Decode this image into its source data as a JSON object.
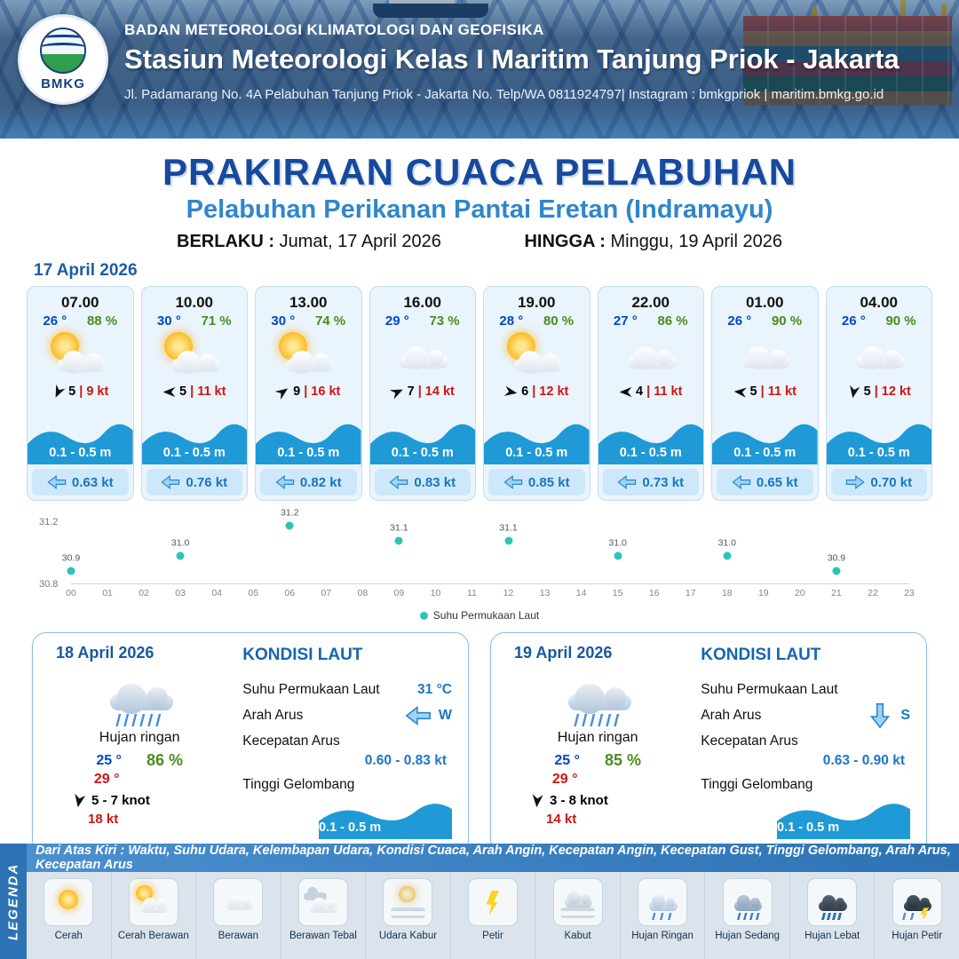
{
  "header": {
    "logo_text": "BMKG",
    "agency": "BADAN METEOROLOGI KLIMATOLOGI DAN GEOFISIKA",
    "station": "Stasiun Meteorologi Kelas I Maritim Tanjung Priok - Jakarta",
    "address": "Jl. Padamarang No. 4A Pelabuhan Tanjung Priok - Jakarta No. Telp/WA 0811924797| Instagram : bmkgpriok | maritim.bmkg.go.id"
  },
  "title": {
    "main": "PRAKIRAAN CUACA PELABUHAN",
    "sub": "Pelabuhan Perikanan Pantai Eretan (Indramayu)",
    "berlaku_label": "BERLAKU :",
    "berlaku_value": "Jumat, 17 April 2026",
    "hingga_label": "HINGGA :",
    "hingga_value": "Minggu, 19 April 2026",
    "forecast_date": "17 April 2026"
  },
  "cards": [
    {
      "time": "07.00",
      "temp": "26 °",
      "rh": "88 %",
      "icon": "cerah-berawan",
      "wind": "5",
      "gust": "| 9 kt",
      "wind_deg": 115,
      "wave": "0.1 - 0.5 m",
      "current": "0.63 kt",
      "cur_deg": 180
    },
    {
      "time": "10.00",
      "temp": "30 °",
      "rh": "71 %",
      "icon": "cerah-berawan",
      "wind": "5",
      "gust": "| 11 kt",
      "wind_deg": 180,
      "wave": "0.1 - 0.5 m",
      "current": "0.76 kt",
      "cur_deg": 180
    },
    {
      "time": "13.00",
      "temp": "30 °",
      "rh": "74 %",
      "icon": "cerah-berawan",
      "wind": "9",
      "gust": "| 16 kt",
      "wind_deg": 325,
      "wave": "0.1 - 0.5 m",
      "current": "0.82 kt",
      "cur_deg": 180
    },
    {
      "time": "16.00",
      "temp": "29 °",
      "rh": "73 %",
      "icon": "berawan",
      "wind": "7",
      "gust": "| 14 kt",
      "wind_deg": 335,
      "wave": "0.1 - 0.5 m",
      "current": "0.83 kt",
      "cur_deg": 180
    },
    {
      "time": "19.00",
      "temp": "28 °",
      "rh": "80 %",
      "icon": "cerah-berawan",
      "wind": "6",
      "gust": "| 12 kt",
      "wind_deg": 10,
      "wave": "0.1 - 0.5 m",
      "current": "0.85 kt",
      "cur_deg": 180
    },
    {
      "time": "22.00",
      "temp": "27 °",
      "rh": "86 %",
      "icon": "berawan",
      "wind": "4",
      "gust": "| 11 kt",
      "wind_deg": 180,
      "wave": "0.1 - 0.5 m",
      "current": "0.73 kt",
      "cur_deg": 180
    },
    {
      "time": "01.00",
      "temp": "26 °",
      "rh": "90 %",
      "icon": "berawan",
      "wind": "5",
      "gust": "| 11 kt",
      "wind_deg": 185,
      "wave": "0.1 - 0.5 m",
      "current": "0.65 kt",
      "cur_deg": 180
    },
    {
      "time": "04.00",
      "temp": "26 °",
      "rh": "90 %",
      "icon": "berawan",
      "wind": "5",
      "gust": "| 12 kt",
      "wind_deg": 100,
      "wave": "0.1 - 0.5 m",
      "current": "0.70 kt",
      "cur_deg": 0
    }
  ],
  "chart_data": {
    "type": "scatter",
    "series_name": "Suhu Permukaan Laut",
    "x_ticks": [
      "00",
      "01",
      "02",
      "03",
      "04",
      "05",
      "06",
      "07",
      "08",
      "09",
      "10",
      "11",
      "12",
      "13",
      "14",
      "15",
      "16",
      "17",
      "18",
      "19",
      "20",
      "21",
      "22",
      "23"
    ],
    "y_ticks": [
      "31.2",
      "30.8"
    ],
    "ylim": [
      30.8,
      31.2
    ],
    "points": [
      {
        "h": 0,
        "v": 30.9
      },
      {
        "h": 3,
        "v": 31.0
      },
      {
        "h": 6,
        "v": 31.2
      },
      {
        "h": 9,
        "v": 31.1
      },
      {
        "h": 12,
        "v": 31.1
      },
      {
        "h": 15,
        "v": 31.0
      },
      {
        "h": 18,
        "v": 31.0
      },
      {
        "h": 21,
        "v": 30.9
      }
    ],
    "dot_color": "#2ec4b6",
    "legend_position": "bottom-center",
    "grid": false
  },
  "day_cards": [
    {
      "date": "18 April 2026",
      "icon": "hujan-ringan",
      "condition": "Hujan ringan",
      "temp_min": "25 °",
      "temp_max": "29 °",
      "rh": "86 %",
      "wind": "5 - 7 knot",
      "gust": "18 kt",
      "wind_deg": 100,
      "sea_title": "KONDISI LAUT",
      "sst_label": "Suhu Permukaan Laut",
      "sst_value": "31 °C",
      "current_dir_label": "Arah Arus",
      "current_dir": "W",
      "cur_deg": 180,
      "current_speed_label": "Kecepatan Arus",
      "current_speed": "0.60 - 0.83 kt",
      "wave_label": "Tinggi Gelombang",
      "wave": "0.1 - 0.5 m"
    },
    {
      "date": "19 April 2026",
      "icon": "hujan-ringan",
      "condition": "Hujan ringan",
      "temp_min": "25 °",
      "temp_max": "29 °",
      "rh": "85 %",
      "wind": "3 - 8 knot",
      "gust": "14 kt",
      "wind_deg": 95,
      "sea_title": "KONDISI LAUT",
      "sst_label": "Suhu Permukaan Laut",
      "sst_value": "",
      "current_dir_label": "Arah Arus",
      "current_dir": "S",
      "cur_deg": 90,
      "current_speed_label": "Kecepatan Arus",
      "current_speed": "0.63 - 0.90 kt",
      "wave_label": "Tinggi Gelombang",
      "wave": "0.1 - 0.5 m"
    }
  ],
  "footer": {
    "note": "Dari Atas Kiri : Waktu, Suhu Udara, Kelembapan Udara, Kondisi Cuaca, Arah Angin, Kecepatan Angin, Kecepatan Gust, Tinggi Gelombang, Arah Arus, Kecepatan Arus",
    "legenda": "LEGENDA",
    "items": [
      {
        "label": "Cerah",
        "icon": "cerah"
      },
      {
        "label": "Cerah Berawan",
        "icon": "cerah-berawan"
      },
      {
        "label": "Berawan",
        "icon": "berawan"
      },
      {
        "label": "Berawan Tebal",
        "icon": "berawan-tebal"
      },
      {
        "label": "Udara Kabur",
        "icon": "udara-kabur"
      },
      {
        "label": "Petir",
        "icon": "petir"
      },
      {
        "label": "Kabut",
        "icon": "kabut"
      },
      {
        "label": "Hujan Ringan",
        "icon": "hujan-ringan"
      },
      {
        "label": "Hujan Sedang",
        "icon": "hujan-sedang"
      },
      {
        "label": "Hujan Lebat",
        "icon": "hujan-lebat"
      },
      {
        "label": "Hujan Petir",
        "icon": "hujan-petir"
      }
    ]
  },
  "colors": {
    "accent_blue": "#17499c",
    "sub_blue": "#2f86cc",
    "temp_blue": "#0047c8",
    "temp_red": "#d11414",
    "rh_green": "#4a8c1f",
    "wave_blue": "#1f9ad6",
    "dot_teal": "#2ec4b6"
  }
}
